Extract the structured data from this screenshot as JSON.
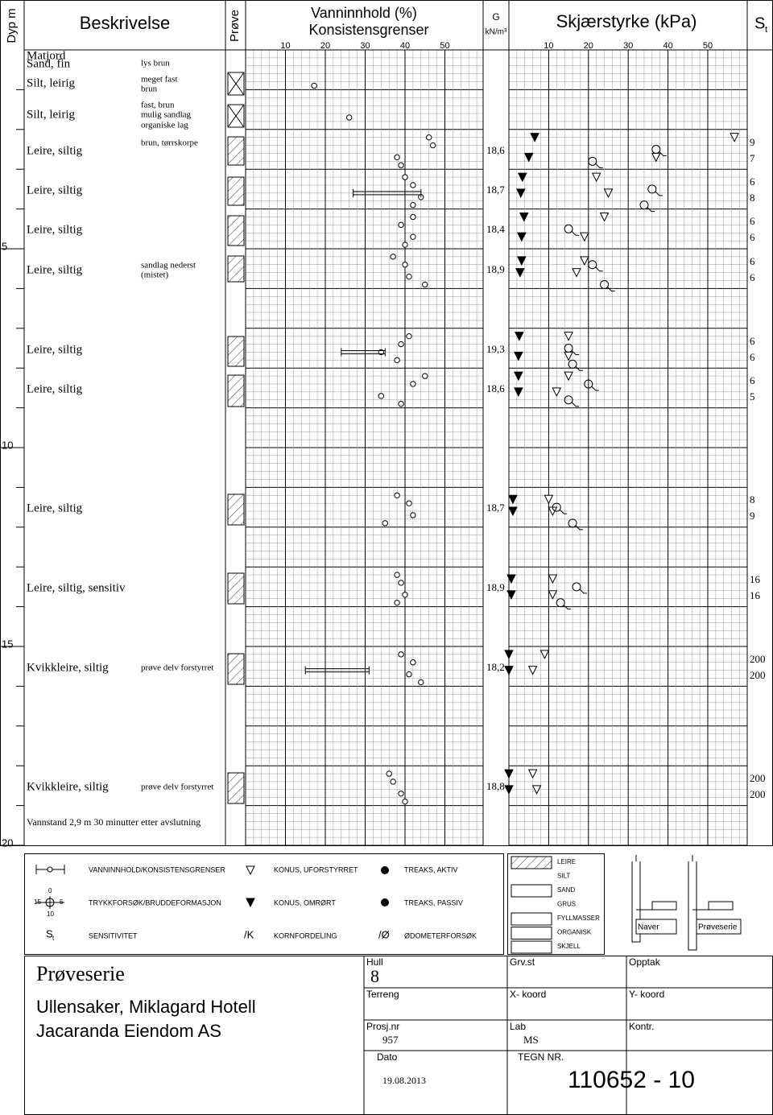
{
  "header": {
    "depth": "Dyp m",
    "description": "Beskrivelse",
    "sample": "Prøve",
    "water_content": "Vanninnhold (%)",
    "consistency": "Konsistensgrenser",
    "unit_weight": "G",
    "unit_weight_unit": "kN/m³",
    "shear": "Skjærstyrke (kPa)",
    "sensitivity": "S",
    "sensitivity_sub": "t"
  },
  "depth_ticks": [
    5,
    10,
    15,
    20
  ],
  "wc_ticks": [
    10,
    20,
    30,
    40,
    50
  ],
  "shear_ticks": [
    10,
    20,
    30,
    40,
    50
  ],
  "layers": [
    {
      "name": "Matjord"
    },
    {
      "name": "Sand, fin",
      "description": [
        "lys brun"
      ]
    },
    {
      "name": "Silt, leirig",
      "description": [
        "meget fast",
        "brun"
      ]
    },
    {
      "name": "Silt, leirig",
      "description": [
        "fast, brun",
        "mulig sandlag",
        "organiske lag"
      ]
    },
    {
      "name": "Leire, siltig",
      "description": [
        "brun, tørrskorpe"
      ],
      "unit_weight": "18,6",
      "sensitivity": [
        9,
        7
      ]
    },
    {
      "name": "Leire, siltig",
      "unit_weight": "18,7",
      "sensitivity": [
        6,
        8
      ]
    },
    {
      "name": "Leire, siltig",
      "unit_weight": "18,4",
      "sensitivity": [
        6,
        6
      ]
    },
    {
      "name": "Leire, siltig",
      "description": [
        "sandlag nederst",
        "(mistet)"
      ],
      "unit_weight": "18,9",
      "sensitivity": [
        6,
        6
      ]
    },
    {
      "name": "Leire, siltig",
      "unit_weight": "19,3",
      "sensitivity": [
        6,
        6
      ]
    },
    {
      "name": "Leire, siltig",
      "unit_weight": "18,6",
      "sensitivity": [
        6,
        5
      ]
    },
    {
      "name": "Leire, siltig",
      "unit_weight": "18,7",
      "sensitivity": [
        8,
        9
      ]
    },
    {
      "name": "Leire, siltig, sensitiv",
      "unit_weight": "18,9",
      "sensitivity": [
        16,
        16
      ]
    },
    {
      "name": "Kvikkleire, siltig",
      "description": [
        "prøve delv forstyrret"
      ],
      "unit_weight": "18,2",
      "sensitivity": [
        200,
        200
      ]
    },
    {
      "name": "Kvikkleire, siltig",
      "description": [
        "prøve delv forstyrret"
      ],
      "unit_weight": "18,8",
      "sensitivity": [
        200,
        200
      ]
    }
  ],
  "water_content": [
    [
      0.9,
      17.2
    ],
    [
      1.7,
      26
    ],
    [
      2.2,
      46
    ],
    [
      2.4,
      47
    ],
    [
      2.7,
      38
    ],
    [
      2.9,
      39
    ],
    [
      3.2,
      40
    ],
    [
      3.4,
      42
    ],
    [
      3.7,
      44
    ],
    [
      3.9,
      42
    ],
    [
      4.2,
      42
    ],
    [
      4.4,
      39
    ],
    [
      4.7,
      42
    ],
    [
      4.9,
      40
    ],
    [
      5.2,
      37
    ],
    [
      5.4,
      40
    ],
    [
      5.7,
      41
    ],
    [
      5.9,
      45
    ],
    [
      7.2,
      41
    ],
    [
      7.4,
      39
    ],
    [
      7.6,
      34
    ],
    [
      7.8,
      38
    ],
    [
      8.2,
      45
    ],
    [
      8.4,
      42
    ],
    [
      8.7,
      34
    ],
    [
      8.9,
      39
    ],
    [
      11.2,
      38
    ],
    [
      11.4,
      41
    ],
    [
      11.7,
      42
    ],
    [
      11.9,
      35
    ],
    [
      13.2,
      38
    ],
    [
      13.4,
      39
    ],
    [
      13.7,
      40
    ],
    [
      13.9,
      38
    ],
    [
      15.2,
      39
    ],
    [
      15.4,
      42
    ],
    [
      15.7,
      41
    ],
    [
      15.9,
      44
    ],
    [
      18.2,
      36
    ],
    [
      18.4,
      37
    ],
    [
      18.7,
      39
    ],
    [
      18.9,
      40
    ]
  ],
  "consistency_limits": [
    [
      3.6,
      27,
      44
    ],
    [
      7.6,
      24,
      35
    ],
    [
      15.6,
      15,
      31
    ]
  ],
  "cone_remolded": [
    [
      2.2,
      6.5
    ],
    [
      2.7,
      5
    ],
    [
      3.2,
      3.4
    ],
    [
      3.6,
      3
    ],
    [
      4.2,
      3.8
    ],
    [
      4.7,
      3.2
    ],
    [
      5.3,
      3.2
    ],
    [
      5.6,
      2.8
    ],
    [
      7.2,
      2.6
    ],
    [
      7.7,
      2.4
    ],
    [
      8.2,
      2.4
    ],
    [
      8.6,
      2.4
    ],
    [
      11.3,
      1
    ],
    [
      11.6,
      1
    ],
    [
      13.3,
      0.6
    ],
    [
      13.7,
      0.6
    ],
    [
      15.2,
      0
    ],
    [
      15.6,
      0
    ],
    [
      18.2,
      0
    ],
    [
      18.6,
      0
    ]
  ],
  "cone_undisturbed": [
    [
      2.2,
      56.7
    ],
    [
      2.7,
      37
    ],
    [
      3.2,
      22
    ],
    [
      3.6,
      25
    ],
    [
      4.2,
      24
    ],
    [
      4.7,
      19
    ],
    [
      5.3,
      19
    ],
    [
      5.6,
      17
    ],
    [
      7.2,
      15
    ],
    [
      7.7,
      15
    ],
    [
      8.2,
      15
    ],
    [
      8.6,
      12
    ],
    [
      11.3,
      10
    ],
    [
      11.6,
      11
    ],
    [
      13.3,
      11
    ],
    [
      13.7,
      11
    ],
    [
      15.2,
      9
    ],
    [
      15.6,
      6
    ],
    [
      18.2,
      6
    ],
    [
      18.6,
      7
    ]
  ],
  "compression": [
    [
      2.5,
      37
    ],
    [
      2.8,
      21
    ],
    [
      3.5,
      36
    ],
    [
      3.9,
      34
    ],
    [
      4.5,
      15
    ],
    [
      5.4,
      21
    ],
    [
      5.9,
      24
    ],
    [
      7.5,
      15
    ],
    [
      7.9,
      16
    ],
    [
      8.4,
      20
    ],
    [
      8.8,
      15
    ],
    [
      11.5,
      12
    ],
    [
      11.9,
      16
    ],
    [
      13.5,
      17
    ],
    [
      13.9,
      13
    ]
  ],
  "note": "Vannstand 2,9 m 30 minutter etter avslutning",
  "legend": {
    "water": "VANNINNHOLD/KONSISTENSGRENSER",
    "compression": "TRYKKFORSØK/BRUDDEFORMASJON",
    "sensitivity": "SENSITIVITET",
    "sym_top": "0",
    "sym_left": "15",
    "sym_right": "5",
    "sym_bottom": "10",
    "st": "S",
    "st_sub": "t",
    "cone_undisturbed": "KONUS, UFORSTYRRET",
    "cone_remolded": "KONUS, OMRØRT",
    "grain_sym": "/K",
    "grain": "KORNFORDELING",
    "triax_active": "TREAKS, AKTIV",
    "triax_passive": "TREAKS, PASSIV",
    "oedo_sym": "/Ø",
    "oedo": "ØDOMETERFORSØK",
    "soils": [
      "LEIRE",
      "SILT",
      "SAND",
      "GRUS",
      "FYLLMASSER",
      "ORGANISK",
      "SKJELL"
    ],
    "auger": "Naver",
    "sampler": "Prøveserie"
  },
  "title_block": {
    "title": "Prøveserie",
    "place": "Ullensaker, Miklagard Hotell",
    "client": "Jacaranda Eiendom AS",
    "hole_label": "Hull",
    "hole": "8",
    "terrain_label": "Terreng",
    "project_label": "Prosj.nr",
    "project": "957",
    "date_label": "Dato",
    "date": "19.08.2013",
    "gw_label": "Grv.st",
    "x_label": "X- koord",
    "lab_label": "Lab",
    "lab": "MS",
    "drawing_label": "TEGN NR.",
    "drawing": "110652 - 10",
    "recorded_label": "Opptak",
    "y_label": "Y- koord",
    "checked_label": "Kontr."
  }
}
